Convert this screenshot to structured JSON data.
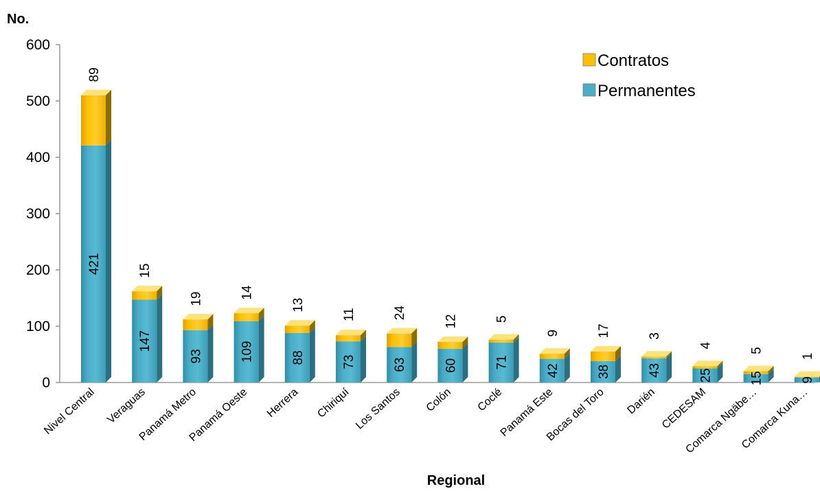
{
  "chart_data": {
    "type": "bar",
    "stacked": true,
    "style": "3d-columns",
    "ylabel": "No.",
    "xlabel": "Regional",
    "ylim": [
      0,
      600
    ],
    "yticks": [
      0,
      100,
      200,
      300,
      400,
      500,
      600
    ],
    "categories": [
      "Nivel Central",
      "Veraguas",
      "Panamá Metro",
      "Panamá Oeste",
      "Herrera",
      "Chiriquí",
      "Los Santos",
      "Colón",
      "Coclé",
      "Panamá Este",
      "Bocas del Toro",
      "Darién",
      "CEDESAM",
      "Comarca Ngäbe…",
      "Comarca Kuna…"
    ],
    "series": [
      {
        "name": "Permanentes",
        "values": [
          421,
          147,
          93,
          109,
          88,
          73,
          63,
          60,
          71,
          42,
          38,
          43,
          25,
          15,
          9
        ]
      },
      {
        "name": "Contratos",
        "values": [
          89,
          15,
          19,
          14,
          13,
          11,
          24,
          12,
          5,
          9,
          17,
          3,
          4,
          5,
          1
        ]
      }
    ],
    "legend_position": "top-right",
    "legend_order": [
      "Contratos",
      "Permanentes"
    ],
    "grid": false
  },
  "colors": {
    "Permanentes": "#4BACC6",
    "Contratos": "#FFC000",
    "axis": "#868686"
  }
}
